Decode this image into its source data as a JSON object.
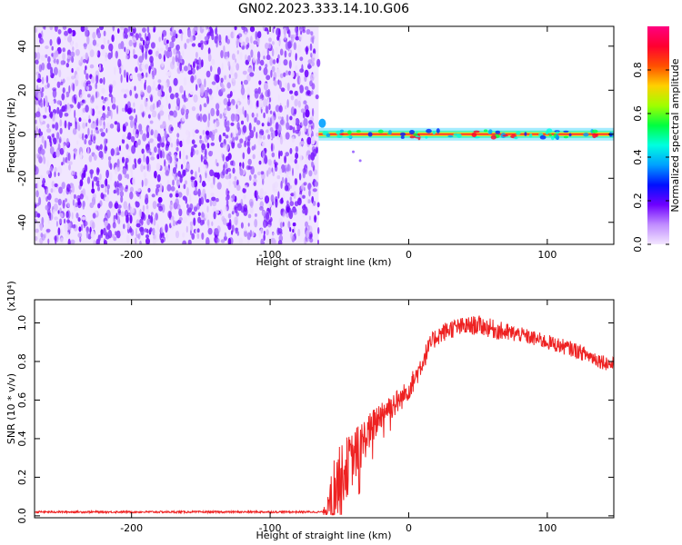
{
  "page_title": "GN02.2023.333.14.10.G06",
  "chart_data": [
    {
      "type": "heatmap",
      "title": "GN02.2023.333.14.10.G06",
      "xlabel": "Height of straight line (km)",
      "ylabel": "Frequency (Hz)",
      "xlim": [
        -270,
        148
      ],
      "ylim": [
        -50,
        49
      ],
      "x_ticks": [
        -200,
        -100,
        0,
        100
      ],
      "y_ticks": [
        40,
        20,
        0,
        -20,
        -40
      ],
      "noise_region_x": [
        -270,
        -65
      ],
      "signal_line": {
        "x_start": -65,
        "x_end": 148,
        "frequency_hz": 0,
        "start_frequency_hz": 5,
        "note_points_x": [
          -40,
          -35
        ]
      },
      "colorbar": {
        "label": "Normalized spectral amplitude",
        "range": [
          0.0,
          1.0
        ],
        "ticks": [
          0.0,
          0.2,
          0.4,
          0.6,
          0.8
        ],
        "colors": [
          "#f3e6ff",
          "#c08cff",
          "#6e00ff",
          "#0010ff",
          "#00a0ff",
          "#00ffe0",
          "#00ff40",
          "#a0ff00",
          "#ffd000",
          "#ff5000",
          "#ff0030",
          "#ff0080"
        ]
      }
    },
    {
      "type": "line",
      "xlabel": "Height of straight line (km)",
      "ylabel": "SNR (10 * v/v)",
      "y_multiplier": "(x10⁴)",
      "xlim": [
        -270,
        148
      ],
      "ylim": [
        -0.01,
        1.12
      ],
      "x_ticks": [
        -200,
        -100,
        0,
        100
      ],
      "y_ticks": [
        0.0,
        0.2,
        0.4,
        0.6,
        0.8,
        1.0
      ],
      "line_color": "#ee2222",
      "series": [
        {
          "x": [
            -270,
            -200,
            -150,
            -100,
            -70,
            -62,
            -58,
            -55,
            -50,
            -45,
            -40,
            -35,
            -30,
            -25,
            -20,
            -15,
            -10,
            -5,
            0,
            5,
            10,
            15,
            20,
            25,
            30,
            40,
            50,
            60,
            70,
            80,
            90,
            100,
            110,
            120,
            130,
            140,
            148
          ],
          "values": [
            0.02,
            0.02,
            0.02,
            0.02,
            0.02,
            0.02,
            0.05,
            0.1,
            0.2,
            0.25,
            0.3,
            0.36,
            0.42,
            0.47,
            0.53,
            0.56,
            0.58,
            0.61,
            0.66,
            0.72,
            0.8,
            0.88,
            0.93,
            0.95,
            0.97,
            0.98,
            0.99,
            0.97,
            0.95,
            0.94,
            0.92,
            0.9,
            0.88,
            0.86,
            0.83,
            0.8,
            0.78
          ],
          "noise_amplitude": [
            0.005,
            0.005,
            0.005,
            0.005,
            0.005,
            0.005,
            0.06,
            0.18,
            0.16,
            0.16,
            0.14,
            0.13,
            0.1,
            0.09,
            0.08,
            0.07,
            0.07,
            0.06,
            0.06,
            0.06,
            0.06,
            0.05,
            0.05,
            0.05,
            0.05,
            0.05,
            0.05,
            0.05,
            0.05,
            0.04,
            0.04,
            0.04,
            0.04,
            0.04,
            0.04,
            0.04,
            0.04
          ]
        }
      ]
    }
  ]
}
